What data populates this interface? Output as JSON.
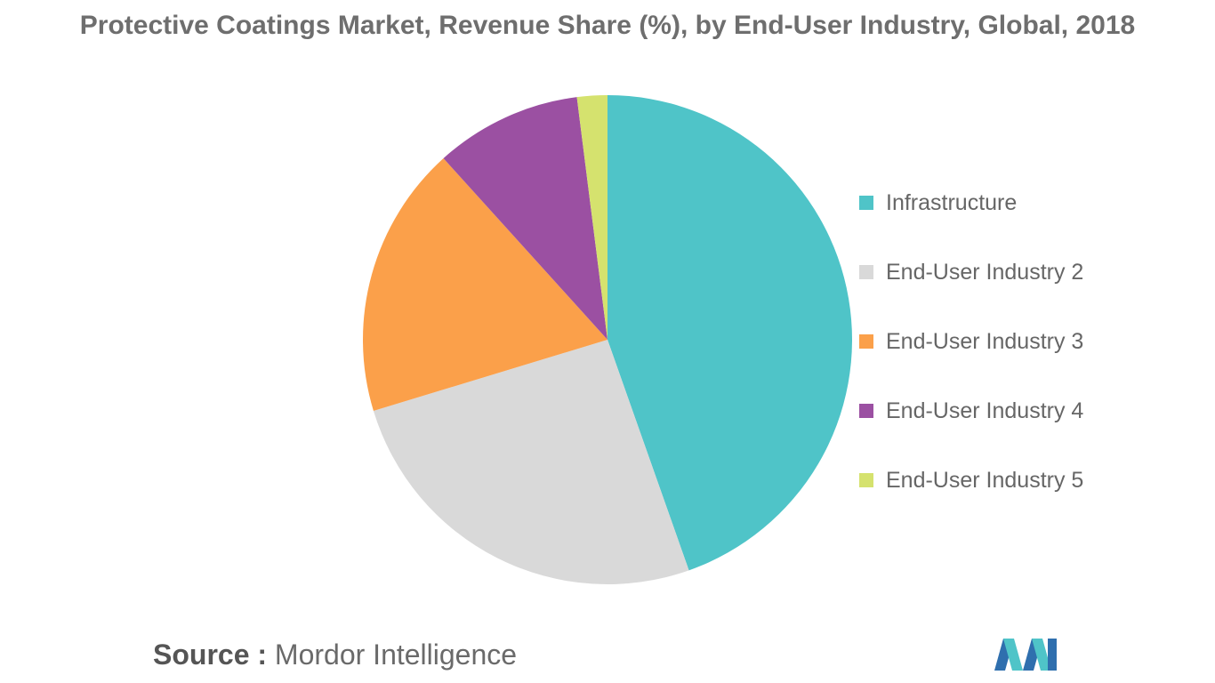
{
  "chart_data": {
    "type": "pie",
    "title": "Protective Coatings Market, Revenue Share (%), by End-User Industry, Global, 2018",
    "categories": [
      "Infrastructure",
      "End-User Industry 2",
      "End-User Industry 3",
      "End-User Industry 4",
      "End-User Industry 5"
    ],
    "values": [
      44.6,
      25.7,
      18.0,
      9.7,
      2.0
    ],
    "colors": [
      "#4fc4c8",
      "#d9d9d9",
      "#fba04a",
      "#9b50a2",
      "#d5e26e"
    ],
    "legend_position": "right"
  },
  "source": {
    "label": "Source :",
    "value": "Mordor Intelligence"
  },
  "logo": {
    "icon": "mordor-intelligence-logo",
    "colors": [
      "#2f6fae",
      "#4fc4c8"
    ]
  }
}
